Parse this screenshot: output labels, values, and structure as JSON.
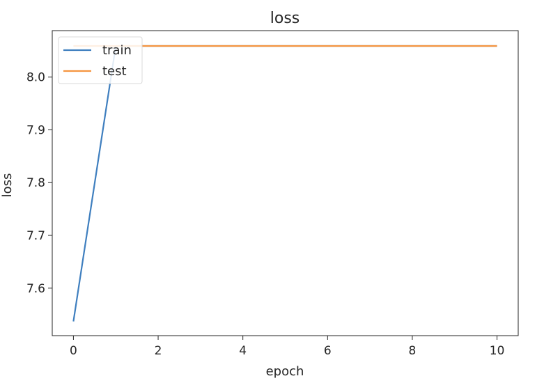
{
  "chart_data": {
    "type": "line",
    "title": "loss",
    "xlabel": "epoch",
    "ylabel": "loss",
    "xlim": [
      -0.5,
      10.5
    ],
    "ylim": [
      7.51,
      8.088
    ],
    "xticks": [
      0,
      2,
      4,
      6,
      8,
      10
    ],
    "yticks": [
      7.6,
      7.7,
      7.8,
      7.9,
      8.0
    ],
    "ytick_labels": [
      "7.6",
      "7.7",
      "7.8",
      "7.9",
      "8.0"
    ],
    "grid": false,
    "legend_position": "upper-left",
    "series": [
      {
        "name": "train",
        "color": "#3f7fbf",
        "x": [
          0,
          1,
          2,
          3,
          4,
          5,
          6,
          7,
          8,
          9,
          10
        ],
        "values": [
          7.537,
          8.059,
          8.059,
          8.059,
          8.059,
          8.059,
          8.059,
          8.059,
          8.059,
          8.059,
          8.059
        ]
      },
      {
        "name": "test",
        "color": "#f59540",
        "x": [
          0,
          1,
          2,
          3,
          4,
          5,
          6,
          7,
          8,
          9,
          10
        ],
        "values": [
          8.059,
          8.059,
          8.059,
          8.059,
          8.059,
          8.059,
          8.059,
          8.059,
          8.059,
          8.059,
          8.059
        ]
      }
    ]
  }
}
